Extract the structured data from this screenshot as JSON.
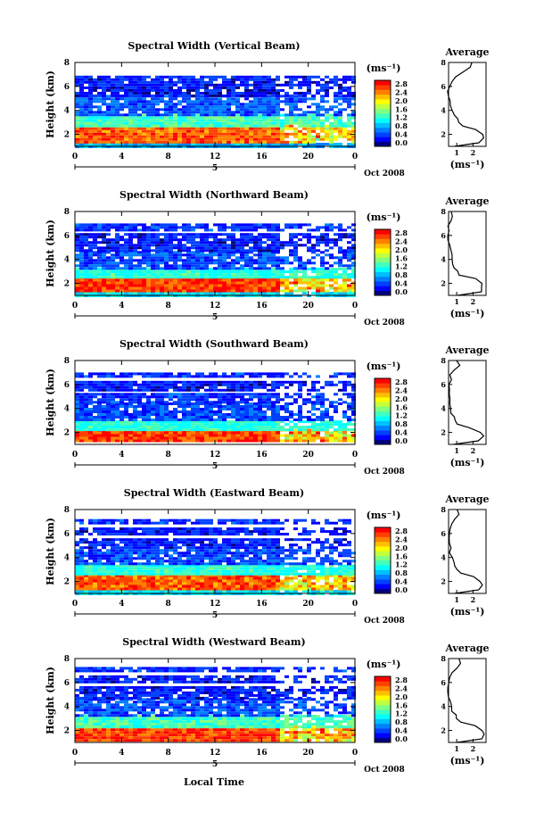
{
  "figure": {
    "colors": [
      "#00007f",
      "#0000ff",
      "#0040ff",
      "#0080ff",
      "#00bfff",
      "#00ffff",
      "#40ffbf",
      "#80ff80",
      "#bfff40",
      "#ffff00",
      "#ffbf00",
      "#ff8000",
      "#ff4000",
      "#ff0000"
    ],
    "bottom_xlabel": "Local Time"
  },
  "chart_data": [
    {
      "type": "heatmap",
      "title": "Spectral Width (Vertical Beam)",
      "ylabel": "Height (km)",
      "xlim": [
        0,
        24
      ],
      "ylim": [
        1,
        8
      ],
      "x_ticks": [
        "0",
        "4",
        "8",
        "12",
        "16",
        "20",
        "0"
      ],
      "y_ticks": [
        "2",
        "4",
        "6",
        "8"
      ],
      "date_day": "5",
      "date_label": "Oct 2008",
      "colorbar": {
        "unit": "(ms⁻¹)",
        "ticks": [
          "0.0",
          "0.4",
          "0.8",
          "1.2",
          "1.6",
          "2.0",
          "2.4",
          "2.8"
        ]
      },
      "layers": [
        {
          "h0": 1.0,
          "h1": 1.3,
          "v": 0.8
        },
        {
          "h0": 1.3,
          "h1": 2.8,
          "v": 2.5
        },
        {
          "h0": 2.8,
          "h1": 3.7,
          "v": 1.3
        },
        {
          "h0": 3.7,
          "h1": 5.3,
          "v": 0.5
        },
        {
          "h0": 5.3,
          "h1": 6.0,
          "v": 0.25
        },
        {
          "h0": 6.2,
          "h1": 6.9,
          "v": 0.3
        }
      ],
      "average": {
        "title": "Average",
        "xlabel": "(ms⁻¹)",
        "xticks": [
          "1",
          "2"
        ],
        "yticks": [
          "2",
          "4",
          "6",
          "8"
        ],
        "xlim": [
          0.5,
          2.8
        ],
        "heights": [
          1.0,
          1.3,
          1.7,
          2.0,
          2.4,
          2.7,
          3.0,
          3.3,
          3.6,
          4.0,
          4.4,
          4.8,
          5.2,
          5.6,
          6.0,
          6.4,
          6.8,
          7.2,
          7.6,
          8.0
        ],
        "values": [
          0.9,
          2.4,
          2.7,
          2.6,
          2.2,
          1.4,
          1.1,
          1.0,
          0.8,
          0.7,
          0.6,
          0.6,
          0.55,
          0.5,
          0.55,
          0.7,
          0.9,
          1.4,
          1.8,
          1.9
        ]
      }
    },
    {
      "type": "heatmap",
      "title": "Spectral Width (Northward Beam)",
      "ylabel": "Height (km)",
      "xlim": [
        0,
        24
      ],
      "ylim": [
        1,
        8
      ],
      "x_ticks": [
        "0",
        "4",
        "8",
        "12",
        "16",
        "20",
        "0"
      ],
      "y_ticks": [
        "2",
        "4",
        "6",
        "8"
      ],
      "date_day": "5",
      "date_label": "Oct 2008",
      "colorbar": {
        "unit": "(ms⁻¹)",
        "ticks": [
          "0.0",
          "0.4",
          "0.8",
          "1.2",
          "1.6",
          "2.0",
          "2.4",
          "2.8"
        ]
      },
      "layers": [
        {
          "h0": 1.0,
          "h1": 1.3,
          "v": 1.0
        },
        {
          "h0": 1.3,
          "h1": 2.6,
          "v": 2.6
        },
        {
          "h0": 2.6,
          "h1": 3.3,
          "v": 1.2
        },
        {
          "h0": 3.3,
          "h1": 4.7,
          "v": 0.45
        },
        {
          "h0": 4.7,
          "h1": 5.3,
          "v": 0.3
        },
        {
          "h0": 5.5,
          "h1": 6.2,
          "v": 0.3
        },
        {
          "h0": 6.5,
          "h1": 7.0,
          "v": 0.35
        }
      ],
      "average": {
        "title": "Average",
        "xlabel": "(ms⁻¹)",
        "xticks": [
          "1",
          "2"
        ],
        "yticks": [
          "2",
          "4",
          "6",
          "8"
        ],
        "xlim": [
          0.5,
          2.8
        ],
        "heights": [
          1.0,
          1.3,
          1.7,
          2.0,
          2.4,
          2.7,
          3.0,
          3.3,
          3.6,
          4.0,
          4.4,
          4.8,
          5.2,
          5.6,
          6.0,
          6.4,
          6.8,
          7.2,
          7.6,
          8.0
        ],
        "values": [
          1.0,
          2.5,
          2.6,
          2.5,
          2.1,
          1.2,
          1.0,
          0.9,
          0.8,
          0.7,
          0.65,
          0.6,
          0.5,
          0.45,
          0.5,
          0.6,
          0.5,
          0.7,
          0.8,
          0.7
        ]
      }
    },
    {
      "type": "heatmap",
      "title": "Spectral Width (Southward Beam)",
      "ylabel": "Height (km)",
      "xlim": [
        0,
        24
      ],
      "ylim": [
        1,
        8
      ],
      "x_ticks": [
        "0",
        "4",
        "8",
        "12",
        "16",
        "20",
        "0"
      ],
      "y_ticks": [
        "2",
        "4",
        "6",
        "8"
      ],
      "date_day": "5",
      "date_label": "Oct 2008",
      "colorbar": {
        "unit": "(ms⁻¹)",
        "ticks": [
          "0.0",
          "0.4",
          "0.8",
          "1.2",
          "1.6",
          "2.0",
          "2.4",
          "2.8"
        ]
      },
      "layers": [
        {
          "h0": 1.3,
          "h1": 2.3,
          "v": 2.6
        },
        {
          "h0": 2.3,
          "h1": 3.0,
          "v": 1.2
        },
        {
          "h0": 3.0,
          "h1": 4.5,
          "v": 0.45
        },
        {
          "h0": 4.5,
          "h1": 5.3,
          "v": 0.35
        },
        {
          "h0": 5.5,
          "h1": 6.3,
          "v": 0.3
        },
        {
          "h0": 6.6,
          "h1": 7.0,
          "v": 0.35
        }
      ],
      "average": {
        "title": "Average",
        "xlabel": "(ms⁻¹)",
        "xticks": [
          "1",
          "2"
        ],
        "yticks": [
          "2",
          "4",
          "6",
          "8"
        ],
        "xlim": [
          0.5,
          2.8
        ],
        "heights": [
          1.0,
          1.3,
          1.7,
          2.0,
          2.4,
          2.7,
          3.0,
          3.3,
          3.6,
          4.0,
          4.4,
          4.8,
          5.2,
          5.6,
          6.0,
          6.4,
          6.8,
          7.2,
          7.6,
          8.0
        ],
        "values": [
          0.8,
          2.3,
          2.6,
          2.4,
          1.8,
          1.1,
          0.9,
          0.8,
          0.7,
          0.65,
          0.6,
          0.55,
          0.5,
          0.5,
          0.55,
          0.7,
          0.6,
          0.9,
          1.2,
          1.0
        ]
      }
    },
    {
      "type": "heatmap",
      "title": "Spectral Width (Eastward Beam)",
      "ylabel": "Height (km)",
      "xlim": [
        0,
        24
      ],
      "ylim": [
        1,
        8
      ],
      "x_ticks": [
        "0",
        "4",
        "8",
        "12",
        "16",
        "20",
        "0"
      ],
      "y_ticks": [
        "2",
        "4",
        "6",
        "8"
      ],
      "date_day": "5",
      "date_label": "Oct 2008",
      "colorbar": {
        "unit": "(ms⁻¹)",
        "ticks": [
          "0.0",
          "0.4",
          "0.8",
          "1.2",
          "1.6",
          "2.0",
          "2.4",
          "2.8"
        ]
      },
      "layers": [
        {
          "h0": 1.0,
          "h1": 1.3,
          "v": 1.0
        },
        {
          "h0": 1.3,
          "h1": 2.6,
          "v": 2.5
        },
        {
          "h0": 2.6,
          "h1": 3.4,
          "v": 1.2
        },
        {
          "h0": 3.4,
          "h1": 4.7,
          "v": 0.45
        },
        {
          "h0": 4.8,
          "h1": 5.6,
          "v": 0.3
        },
        {
          "h0": 5.9,
          "h1": 6.5,
          "v": 0.3
        },
        {
          "h0": 6.8,
          "h1": 7.2,
          "v": 0.35
        }
      ],
      "average": {
        "title": "Average",
        "xlabel": "(ms⁻¹)",
        "xticks": [
          "1",
          "2"
        ],
        "yticks": [
          "2",
          "4",
          "6",
          "8"
        ],
        "xlim": [
          0.5,
          2.8
        ],
        "heights": [
          1.0,
          1.3,
          1.7,
          2.0,
          2.4,
          2.7,
          3.0,
          3.3,
          3.6,
          4.0,
          4.4,
          4.8,
          5.2,
          5.6,
          6.0,
          6.4,
          6.8,
          7.2,
          7.6,
          8.0
        ],
        "values": [
          0.9,
          2.3,
          2.6,
          2.5,
          2.0,
          1.2,
          1.0,
          0.9,
          0.8,
          0.7,
          0.6,
          0.6,
          0.55,
          0.5,
          0.6,
          0.55,
          0.65,
          0.9,
          1.1,
          1.0
        ]
      }
    },
    {
      "type": "heatmap",
      "title": "Spectral Width (Westward Beam)",
      "ylabel": "Height (km)",
      "xlim": [
        0,
        24
      ],
      "ylim": [
        1,
        8
      ],
      "x_ticks": [
        "0",
        "4",
        "8",
        "12",
        "16",
        "20",
        "0"
      ],
      "y_ticks": [
        "2",
        "4",
        "6",
        "8"
      ],
      "date_day": "5",
      "date_label": "Oct 2008",
      "colorbar": {
        "unit": "(ms⁻¹)",
        "ticks": [
          "0.0",
          "0.4",
          "0.8",
          "1.2",
          "1.6",
          "2.0",
          "2.4",
          "2.8"
        ]
      },
      "layers": [
        {
          "h0": 1.2,
          "h1": 2.4,
          "v": 2.6
        },
        {
          "h0": 2.4,
          "h1": 3.3,
          "v": 1.3
        },
        {
          "h0": 3.3,
          "h1": 4.7,
          "v": 0.45
        },
        {
          "h0": 4.8,
          "h1": 5.7,
          "v": 0.3
        },
        {
          "h0": 6.0,
          "h1": 6.6,
          "v": 0.3
        },
        {
          "h0": 6.9,
          "h1": 7.3,
          "v": 0.35
        }
      ],
      "average": {
        "title": "Average",
        "xlabel": "(ms⁻¹)",
        "xticks": [
          "1",
          "2"
        ],
        "yticks": [
          "2",
          "4",
          "6",
          "8"
        ],
        "xlim": [
          0.5,
          2.8
        ],
        "heights": [
          1.0,
          1.3,
          1.7,
          2.0,
          2.4,
          2.7,
          3.0,
          3.3,
          3.6,
          4.0,
          4.4,
          4.8,
          5.2,
          5.6,
          6.0,
          6.4,
          6.8,
          7.2,
          7.6,
          8.0
        ],
        "values": [
          1.0,
          2.5,
          2.7,
          2.5,
          2.1,
          1.3,
          1.0,
          0.9,
          0.75,
          0.7,
          0.6,
          0.55,
          0.5,
          0.5,
          0.55,
          0.6,
          0.7,
          1.0,
          1.3,
          1.2
        ]
      }
    }
  ]
}
